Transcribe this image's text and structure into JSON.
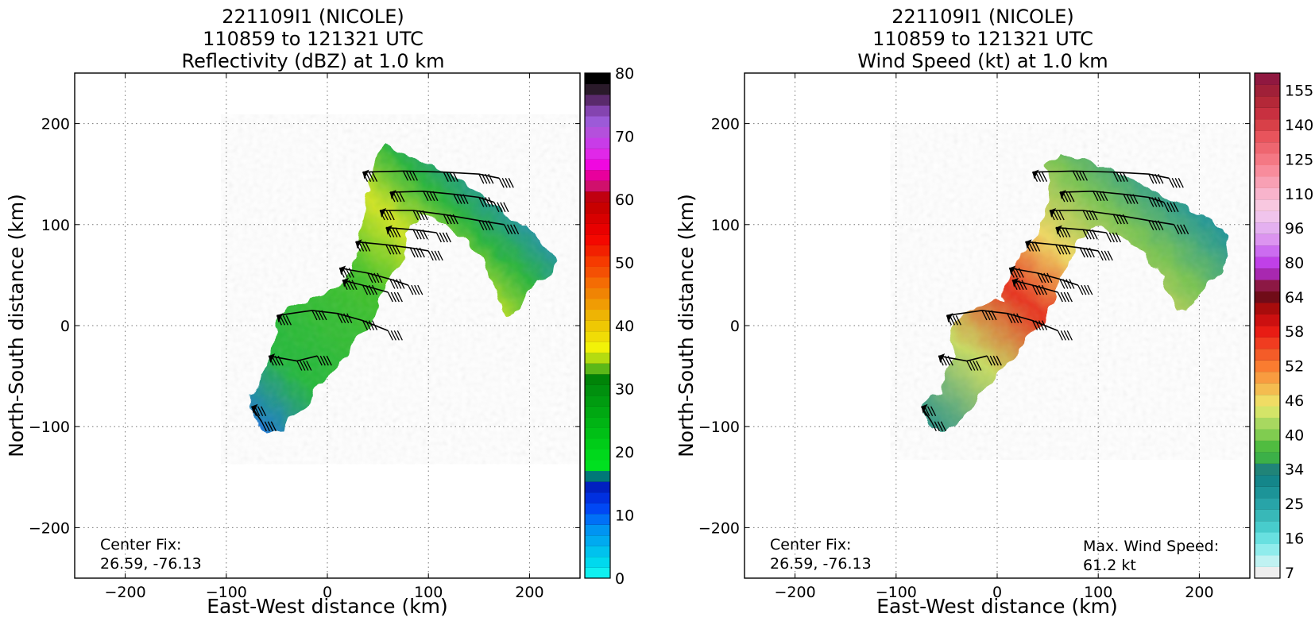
{
  "chart_data": [
    {
      "type": "heatmap",
      "title": [
        "221109I1 (NICOLE)",
        "110859 to 121321 UTC",
        "Reflectivity (dBZ) at 1.0 km"
      ],
      "xlabel": "East-West distance (km)",
      "ylabel": "North-South distance (km)",
      "xlim": [
        -250,
        250
      ],
      "ylim": [
        -250,
        250
      ],
      "xticks": [
        -200,
        -100,
        0,
        100,
        200
      ],
      "yticks": [
        -200,
        -100,
        0,
        100,
        200
      ],
      "grid": true,
      "center_fix": {
        "label": "Center Fix:",
        "value": "26.59, -76.13"
      },
      "colorbar": {
        "min": 0,
        "max": 80,
        "ticks": [
          0,
          10,
          20,
          30,
          40,
          50,
          60,
          70,
          80
        ],
        "colors": [
          "#0ff0f0",
          "#00d9ee",
          "#00c2ee",
          "#00aaf0",
          "#0094f2",
          "#0070f7",
          "#0048f5",
          "#0030e0",
          "#0020c0",
          "#007878",
          "#00e020",
          "#00d81c",
          "#00cc18",
          "#00c016",
          "#00b414",
          "#00a812",
          "#009c10",
          "#00900e",
          "#008408",
          "#5cb818",
          "#b4dc10",
          "#f2f208",
          "#f0dc06",
          "#eec804",
          "#eeb404",
          "#f09c04",
          "#f08404",
          "#f46c04",
          "#f45004",
          "#f63a00",
          "#f22000",
          "#f40800",
          "#e80000",
          "#d80000",
          "#c80000",
          "#c00010",
          "#d0106c",
          "#e8009c",
          "#f008e0",
          "#e028e8",
          "#c83ce8",
          "#b450dc",
          "#9c5ad8",
          "#8444b0",
          "#5a2a6c",
          "#2a1a2a",
          "#000000"
        ]
      },
      "echo_shape": [
        [
          -75,
          -70
        ],
        [
          -68,
          -55
        ],
        [
          -58,
          -35
        ],
        [
          -52,
          -10
        ],
        [
          -45,
          10
        ],
        [
          -30,
          20
        ],
        [
          -5,
          30
        ],
        [
          20,
          42
        ],
        [
          30,
          80
        ],
        [
          38,
          115
        ],
        [
          40,
          140
        ],
        [
          50,
          170
        ],
        [
          60,
          180
        ],
        [
          72,
          172
        ],
        [
          95,
          162
        ],
        [
          118,
          152
        ],
        [
          140,
          138
        ],
        [
          160,
          122
        ],
        [
          182,
          105
        ],
        [
          198,
          98
        ],
        [
          212,
          82
        ],
        [
          225,
          68
        ],
        [
          222,
          52
        ],
        [
          206,
          46
        ],
        [
          196,
          30
        ],
        [
          188,
          12
        ],
        [
          176,
          8
        ],
        [
          170,
          28
        ],
        [
          160,
          50
        ],
        [
          150,
          70
        ],
        [
          130,
          90
        ],
        [
          110,
          104
        ],
        [
          90,
          110
        ],
        [
          80,
          88
        ],
        [
          70,
          60
        ],
        [
          58,
          40
        ],
        [
          50,
          22
        ],
        [
          40,
          0
        ],
        [
          28,
          -16
        ],
        [
          10,
          -42
        ],
        [
          -8,
          -58
        ],
        [
          -20,
          -78
        ],
        [
          -35,
          -92
        ],
        [
          -45,
          -105
        ],
        [
          -60,
          -108
        ],
        [
          -72,
          -98
        ]
      ],
      "barb_tracks": [
        [
          [
            35,
            152
          ],
          [
            75,
            153
          ],
          [
            115,
            152
          ],
          [
            150,
            150
          ],
          [
            170,
            146
          ]
        ],
        [
          [
            62,
            132
          ],
          [
            95,
            133
          ],
          [
            125,
            130
          ],
          [
            150,
            127
          ],
          [
            165,
            122
          ]
        ],
        [
          [
            52,
            114
          ],
          [
            85,
            114
          ],
          [
            115,
            110
          ],
          [
            150,
            104
          ],
          [
            175,
            100
          ]
        ],
        [
          [
            58,
            97
          ],
          [
            85,
            95
          ],
          [
            108,
            92
          ]
        ],
        [
          [
            28,
            83
          ],
          [
            58,
            80
          ],
          [
            82,
            77
          ],
          [
            100,
            74
          ]
        ],
        [
          [
            12,
            57
          ],
          [
            40,
            52
          ],
          [
            62,
            46
          ],
          [
            80,
            40
          ]
        ],
        [
          [
            15,
            45
          ],
          [
            35,
            40
          ],
          [
            60,
            33
          ]
        ],
        [
          [
            -50,
            10
          ],
          [
            -15,
            15
          ],
          [
            10,
            12
          ],
          [
            35,
            5
          ],
          [
            60,
            -5
          ]
        ],
        [
          [
            -58,
            -30
          ],
          [
            -30,
            -35
          ],
          [
            -10,
            -30
          ]
        ],
        [
          [
            -75,
            -80
          ],
          [
            -65,
            -95
          ]
        ]
      ]
    },
    {
      "type": "heatmap",
      "title": [
        "221109I1 (NICOLE)",
        "110859 to 121321 UTC",
        "Wind Speed (kt) at 1.0 km"
      ],
      "xlabel": "East-West distance (km)",
      "ylabel": "North-South distance (km)",
      "xlim": [
        -250,
        250
      ],
      "ylim": [
        -250,
        250
      ],
      "xticks": [
        -200,
        -100,
        0,
        100,
        200
      ],
      "yticks": [
        -200,
        -100,
        0,
        100,
        200
      ],
      "grid": true,
      "center_fix": {
        "label": "Center Fix:",
        "value": "26.59, -76.13"
      },
      "max_wind": {
        "label": "Max. Wind Speed:",
        "value": "61.2 kt"
      },
      "colorbar": {
        "ticks": [
          "7",
          "16",
          "25",
          "34",
          "40",
          "46",
          "52",
          "58",
          "64",
          "80",
          "96",
          "110",
          "125",
          "140",
          "155"
        ],
        "colors": [
          "#eeeeee",
          "#c0f2f2",
          "#90ecec",
          "#68e0e0",
          "#48cccc",
          "#38b8b8",
          "#28a4a8",
          "#1c9498",
          "#14868a",
          "#208478",
          "#3cb048",
          "#50bc40",
          "#80cc50",
          "#a8d860",
          "#d4e468",
          "#f0dc64",
          "#f4bc50",
          "#f89c40",
          "#fa7c30",
          "#f45c28",
          "#f03c20",
          "#e81c14",
          "#cc1010",
          "#a80c0c",
          "#700c18",
          "#8c1844",
          "#a828b0",
          "#c040e8",
          "#cc6cf0",
          "#dc94f0",
          "#e4b0f0",
          "#f0c4ec",
          "#f8c8e0",
          "#f8b4cc",
          "#f8a0b4",
          "#f88c9c",
          "#f47884",
          "#ee6670",
          "#e8545c",
          "#d84048",
          "#c83040",
          "#b42838",
          "#a02038",
          "#901840"
        ]
      },
      "echo_shape": [
        [
          -75,
          -80
        ],
        [
          -55,
          -65
        ],
        [
          -50,
          -42
        ],
        [
          -42,
          -25
        ],
        [
          -48,
          -8
        ],
        [
          -40,
          5
        ],
        [
          -25,
          15
        ],
        [
          -10,
          20
        ],
        [
          5,
          25
        ],
        [
          10,
          50
        ],
        [
          20,
          66
        ],
        [
          35,
          82
        ],
        [
          45,
          98
        ],
        [
          48,
          120
        ],
        [
          52,
          140
        ],
        [
          50,
          158
        ],
        [
          62,
          172
        ],
        [
          80,
          166
        ],
        [
          100,
          157
        ],
        [
          120,
          152
        ],
        [
          138,
          142
        ],
        [
          150,
          135
        ],
        [
          168,
          126
        ],
        [
          190,
          116
        ],
        [
          210,
          105
        ],
        [
          225,
          92
        ],
        [
          230,
          70
        ],
        [
          222,
          52
        ],
        [
          208,
          44
        ],
        [
          198,
          30
        ],
        [
          188,
          14
        ],
        [
          178,
          16
        ],
        [
          168,
          36
        ],
        [
          158,
          60
        ],
        [
          140,
          78
        ],
        [
          115,
          92
        ],
        [
          95,
          100
        ],
        [
          82,
          85
        ],
        [
          72,
          62
        ],
        [
          62,
          44
        ],
        [
          55,
          22
        ],
        [
          45,
          5
        ],
        [
          30,
          -12
        ],
        [
          18,
          -28
        ],
        [
          5,
          -42
        ],
        [
          -15,
          -65
        ],
        [
          -25,
          -80
        ],
        [
          -35,
          -92
        ],
        [
          -50,
          -105
        ],
        [
          -65,
          -100
        ]
      ],
      "barb_tracks": [
        [
          [
            35,
            152
          ],
          [
            75,
            153
          ],
          [
            115,
            152
          ],
          [
            150,
            150
          ],
          [
            170,
            146
          ]
        ],
        [
          [
            62,
            132
          ],
          [
            95,
            133
          ],
          [
            125,
            130
          ],
          [
            150,
            127
          ],
          [
            165,
            122
          ]
        ],
        [
          [
            52,
            114
          ],
          [
            85,
            114
          ],
          [
            115,
            110
          ],
          [
            150,
            104
          ],
          [
            175,
            100
          ]
        ],
        [
          [
            58,
            97
          ],
          [
            85,
            95
          ],
          [
            108,
            92
          ]
        ],
        [
          [
            28,
            83
          ],
          [
            58,
            80
          ],
          [
            82,
            77
          ],
          [
            100,
            74
          ]
        ],
        [
          [
            12,
            57
          ],
          [
            40,
            52
          ],
          [
            62,
            46
          ],
          [
            80,
            40
          ]
        ],
        [
          [
            15,
            45
          ],
          [
            35,
            40
          ],
          [
            60,
            33
          ]
        ],
        [
          [
            -50,
            10
          ],
          [
            -15,
            15
          ],
          [
            10,
            12
          ],
          [
            35,
            5
          ],
          [
            60,
            -5
          ]
        ],
        [
          [
            -58,
            -30
          ],
          [
            -30,
            -35
          ],
          [
            -10,
            -30
          ]
        ],
        [
          [
            -75,
            -80
          ],
          [
            -65,
            -95
          ]
        ]
      ]
    }
  ]
}
